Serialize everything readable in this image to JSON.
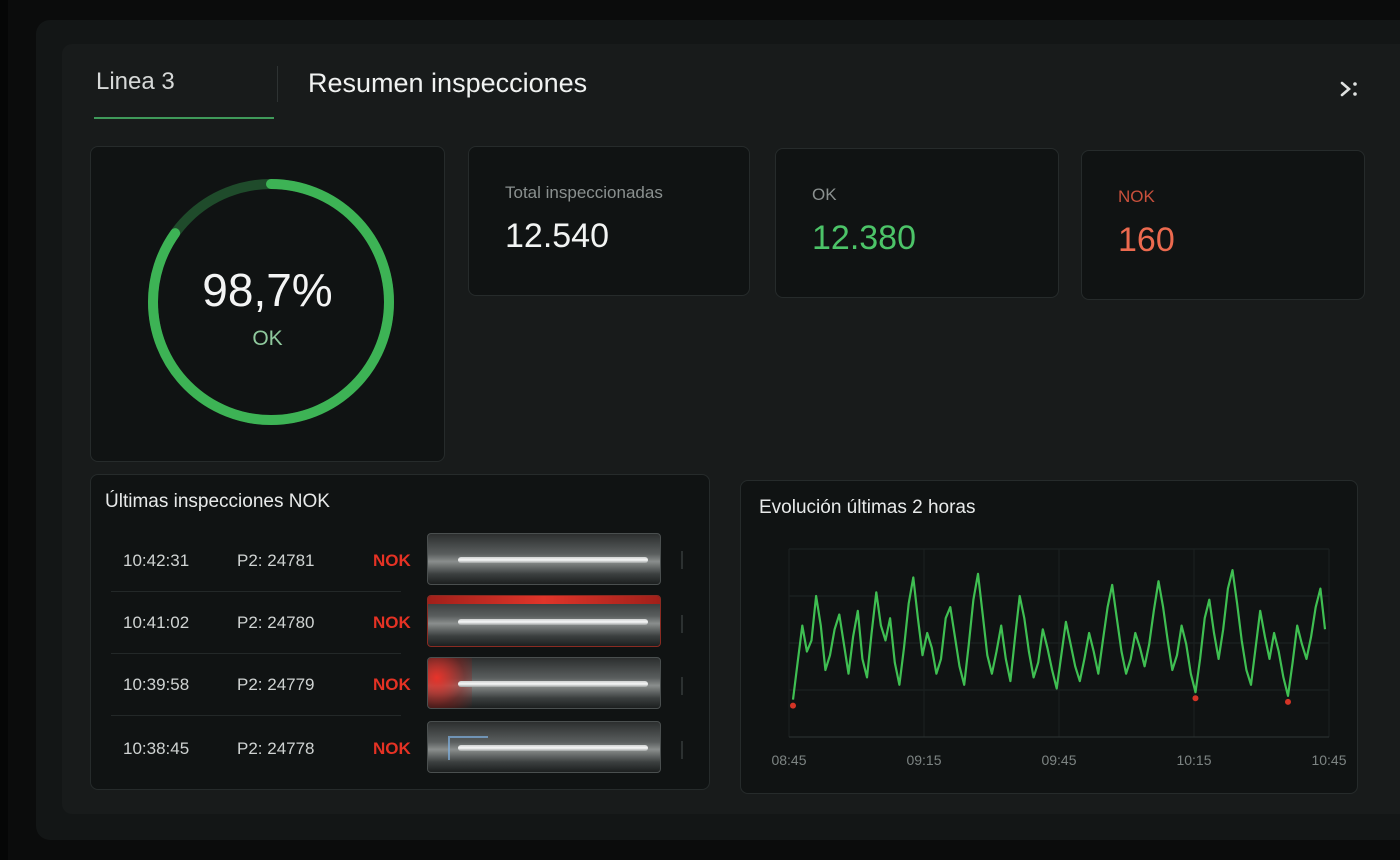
{
  "header": {
    "line_tab": "Linea 3",
    "title": "Resumen inspecciones",
    "expand_icon": "expand-icon"
  },
  "gauge": {
    "percent": 98.7,
    "value_text": "98,7%",
    "label": "OK"
  },
  "stats": [
    {
      "label": "Total inspeccionadas",
      "value": "12.540"
    },
    {
      "label": "OK",
      "value": "12.380"
    },
    {
      "label": "NOK",
      "value": "160"
    }
  ],
  "nok_list": {
    "title": "Últimas inspecciones NOK",
    "rows": [
      {
        "time": "10:42:31",
        "id": "P2: 24781",
        "status": "NOK"
      },
      {
        "time": "10:41:02",
        "id": "P2: 24780",
        "status": "NOK"
      },
      {
        "time": "10:39:58",
        "id": "P2: 24779",
        "status": "NOK"
      },
      {
        "time": "10:38:45",
        "id": "P2: 24778",
        "status": "NOK"
      }
    ]
  },
  "chart_data": {
    "type": "line",
    "title": "Evolución últimas 2 horas",
    "x_ticks": [
      "08:45",
      "09:15",
      "09:45",
      "10:15",
      "10:45"
    ],
    "series": [
      {
        "color": "#3fbf52",
        "values": [
          2,
          12,
          22,
          15,
          18,
          30,
          22,
          10,
          14,
          21,
          25,
          17,
          9,
          19,
          26,
          13,
          8,
          20,
          31,
          22,
          18,
          24,
          12,
          6,
          16,
          28,
          35,
          24,
          14,
          20,
          16,
          9,
          13,
          24,
          27,
          19,
          11,
          6,
          17,
          29,
          36,
          25,
          14,
          9,
          15,
          22,
          13,
          7,
          19,
          30,
          24,
          15,
          8,
          12,
          21,
          16,
          10,
          5,
          14,
          23,
          17,
          11,
          7,
          13,
          20,
          15,
          9,
          18,
          27,
          33,
          24,
          15,
          9,
          13,
          20,
          16,
          11,
          17,
          26,
          34,
          27,
          18,
          10,
          14,
          22,
          17,
          9,
          4,
          13,
          24,
          29,
          20,
          13,
          21,
          32,
          37,
          28,
          18,
          10,
          6,
          16,
          26,
          19,
          13,
          20,
          15,
          8,
          3,
          12,
          22,
          17,
          13,
          19,
          27,
          32,
          21
        ]
      }
    ]
  }
}
